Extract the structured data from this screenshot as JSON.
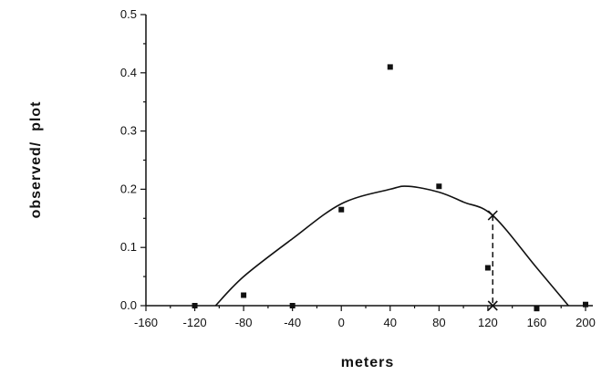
{
  "chart_data": {
    "type": "scatter",
    "title": "",
    "xlabel": "meters",
    "ylabel": "observed/  plot",
    "xlim": [
      -160,
      200
    ],
    "ylim": [
      0.0,
      0.5
    ],
    "x_ticks": [
      "-160",
      "-120",
      "-80",
      "-40",
      "0",
      "40",
      "80",
      "120",
      "160",
      "200"
    ],
    "y_ticks": [
      "0.0",
      "0.1",
      "0.2",
      "0.3",
      "0.4",
      "0.5"
    ],
    "grid": false,
    "series": [
      {
        "type": "scatter",
        "marker": "square",
        "points": [
          {
            "x": -120,
            "y": 0.0
          },
          {
            "x": -80,
            "y": 0.018
          },
          {
            "x": -40,
            "y": 0.0
          },
          {
            "x": 0,
            "y": 0.165
          },
          {
            "x": 40,
            "y": 0.41
          },
          {
            "x": 80,
            "y": 0.205
          },
          {
            "x": 120,
            "y": 0.065
          },
          {
            "x": 160,
            "y": -0.005
          },
          {
            "x": 200,
            "y": 0.002
          }
        ]
      },
      {
        "type": "line",
        "style": "solid",
        "points": [
          {
            "x": -103,
            "y": 0.0
          },
          {
            "x": -80,
            "y": 0.05
          },
          {
            "x": -40,
            "y": 0.115
          },
          {
            "x": 0,
            "y": 0.175
          },
          {
            "x": 40,
            "y": 0.2
          },
          {
            "x": 55,
            "y": 0.205
          },
          {
            "x": 80,
            "y": 0.195
          },
          {
            "x": 100,
            "y": 0.178
          },
          {
            "x": 124,
            "y": 0.155
          },
          {
            "x": 160,
            "y": 0.065
          },
          {
            "x": 186,
            "y": 0.0
          }
        ]
      }
    ],
    "annotations": [
      {
        "type": "x-marker",
        "x": 124,
        "y": 0.155
      },
      {
        "type": "dashed-vertical",
        "x": 124,
        "y_from": 0.155,
        "y_to": 0.0
      },
      {
        "type": "x-marker",
        "x": 124,
        "y": 0.0
      }
    ]
  }
}
